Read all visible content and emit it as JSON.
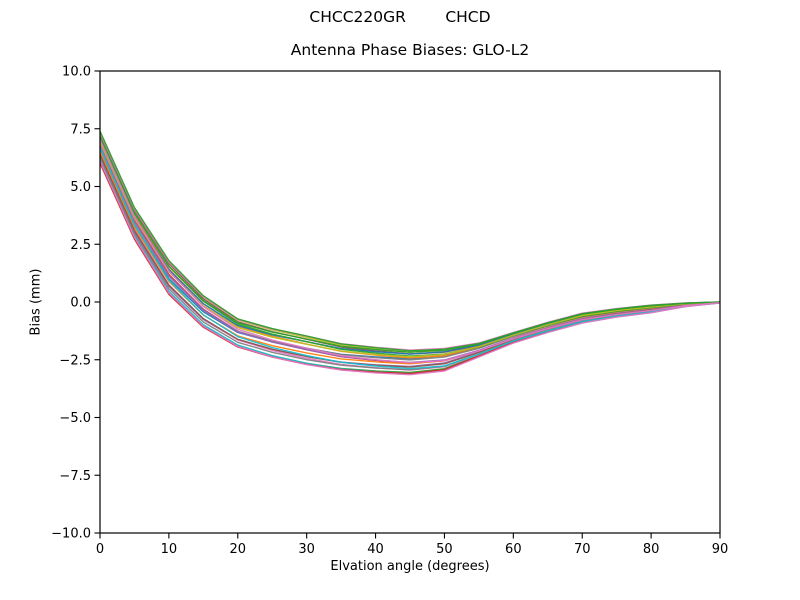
{
  "figure": {
    "suptitle": "CHCC220GR        CHCD"
  },
  "chart_data": {
    "type": "line",
    "title": "Antenna Phase Biases: GLO-L2",
    "xlabel": "Elvation angle (degrees)",
    "ylabel": "Bias (mm)",
    "xlim": [
      0,
      90
    ],
    "ylim": [
      -10,
      10
    ],
    "grid": false,
    "legend": "none",
    "background_color": "#ffffff",
    "axis_color": "#000000",
    "x_ticks": [
      0,
      10,
      20,
      30,
      40,
      50,
      60,
      70,
      80,
      90
    ],
    "x_tick_labels": [
      "0",
      "10",
      "20",
      "30",
      "40",
      "50",
      "60",
      "70",
      "80",
      "90"
    ],
    "y_ticks": [
      10,
      7.5,
      5,
      2.5,
      0,
      -2.5,
      -5,
      -7.5,
      -10
    ],
    "y_tick_labels": [
      "10.0",
      "7.5",
      "5.0",
      "2.5",
      "0.0",
      "−2.5",
      "−5.0",
      "−7.5",
      "−10.0"
    ],
    "x": [
      0,
      5,
      10,
      15,
      20,
      25,
      30,
      35,
      40,
      45,
      50,
      55,
      60,
      65,
      70,
      75,
      80,
      85,
      90
    ],
    "mean": [
      6.7,
      3.4,
      1.05,
      -0.42,
      -1.35,
      -1.78,
      -2.1,
      -2.38,
      -2.52,
      -2.62,
      -2.5,
      -2.08,
      -1.55,
      -1.1,
      -0.7,
      -0.47,
      -0.3,
      -0.12,
      -0.02
    ],
    "half_spread": [
      0.7,
      0.7,
      0.76,
      0.72,
      0.65,
      0.67,
      0.68,
      0.62,
      0.6,
      0.57,
      0.52,
      0.32,
      0.24,
      0.23,
      0.22,
      0.19,
      0.17,
      0.08,
      0.02
    ],
    "series": [
      {
        "color": "#1f77b4",
        "o0": -0.15,
        "o1": 0.72
      },
      {
        "color": "#ff7f0e",
        "o0": 0.55,
        "o1": 0.15
      },
      {
        "color": "#2ca02c",
        "o0": -0.92,
        "o1": -0.6
      },
      {
        "color": "#d62728",
        "o0": 0.25,
        "o1": -0.35
      },
      {
        "color": "#9467bd",
        "o0": -0.55,
        "o1": -0.05
      },
      {
        "color": "#8c564b",
        "o0": 0.85,
        "o1": 0.45
      },
      {
        "color": "#e377c2",
        "o0": -0.35,
        "o1": -0.78
      },
      {
        "color": "#7f7f7f",
        "o0": 0.05,
        "o1": 0.35
      },
      {
        "color": "#bcbd22",
        "o0": 0.95,
        "o1": 0.62
      },
      {
        "color": "#17becf",
        "o0": -0.75,
        "o1": -0.95
      },
      {
        "color": "#1f77b4",
        "o0": 0.4,
        "o1": 0.88
      },
      {
        "color": "#ff7f0e",
        "o0": -0.25,
        "o1": 0.05
      },
      {
        "color": "#2ca02c",
        "o0": 0.7,
        "o1": 0.28
      },
      {
        "color": "#d62728",
        "o0": -0.98,
        "o1": -0.7
      },
      {
        "color": "#9467bd",
        "o0": 0.15,
        "o1": -0.15
      },
      {
        "color": "#8c564b",
        "o0": -0.45,
        "o1": -0.25
      },
      {
        "color": "#e377c2",
        "o0": 0.88,
        "o1": 1.0
      },
      {
        "color": "#7f7f7f",
        "o0": -0.65,
        "o1": -0.45
      },
      {
        "color": "#bcbd22",
        "o0": 0.32,
        "o1": 0.55
      },
      {
        "color": "#17becf",
        "o0": -0.05,
        "o1": -0.88
      },
      {
        "color": "#2ca02c",
        "o0": 0.62,
        "o1": 0.95
      },
      {
        "color": "#e377c2",
        "o0": -0.85,
        "o1": -1.0
      },
      {
        "color": "#2ca02c",
        "o0": 1.0,
        "o1": 0.78
      },
      {
        "color": "#e377c2",
        "o0": 0.48,
        "o1": -0.52
      }
    ]
  }
}
